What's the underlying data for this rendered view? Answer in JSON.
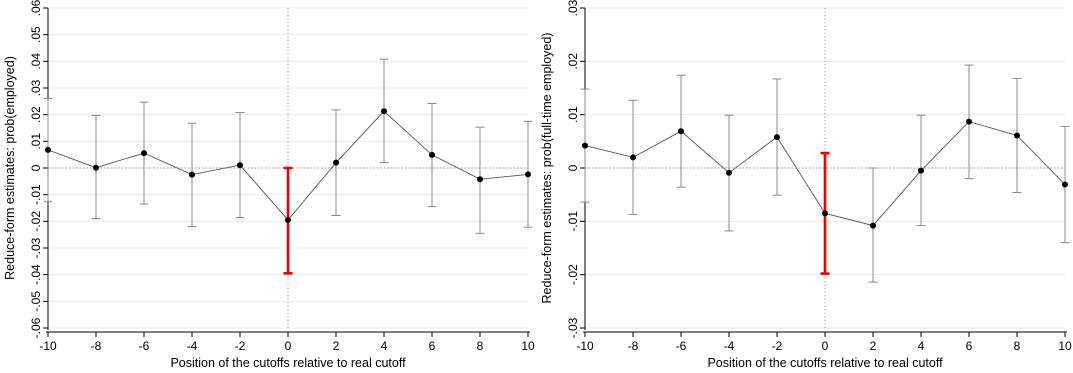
{
  "chart_data": [
    {
      "type": "scatter",
      "xlabel": "Position of the cutoffs relative to real cutoff",
      "ylabel": "Reduce-form estimates: prob(employed)",
      "xlim": [
        -10,
        10
      ],
      "ylim": [
        -0.06,
        0.06
      ],
      "xticks": [
        "-10",
        "-8",
        "-6",
        "-4",
        "-2",
        "0",
        "2",
        "4",
        "6",
        "8",
        "10"
      ],
      "yticks": [
        "-.06",
        "-.05",
        "-.04",
        "-.03",
        "-.02",
        "-.01",
        "0",
        ".01",
        ".02",
        ".03",
        ".04",
        ".05",
        ".06"
      ],
      "ytick_values": [
        -0.06,
        -0.05,
        -0.04,
        -0.03,
        -0.02,
        -0.01,
        0,
        0.01,
        0.02,
        0.03,
        0.04,
        0.05,
        0.06
      ],
      "xtick_values": [
        -10,
        -8,
        -6,
        -4,
        -2,
        0,
        2,
        4,
        6,
        8,
        10
      ],
      "grid": true,
      "reference_lines": {
        "x": 0,
        "y": 0
      },
      "highlight_x": 0,
      "highlight_color": "#e8000b",
      "point_color": "#000000",
      "line_color": "#555555",
      "ci_color": "#888888",
      "points": [
        {
          "x": -10,
          "y": 0.0068,
          "lo": -0.0125,
          "hi": 0.0261
        },
        {
          "x": -8,
          "y": 0.0001,
          "lo": -0.019,
          "hi": 0.0197
        },
        {
          "x": -6,
          "y": 0.0056,
          "lo": -0.0135,
          "hi": 0.0247
        },
        {
          "x": -4,
          "y": -0.0025,
          "lo": -0.022,
          "hi": 0.0168
        },
        {
          "x": -2,
          "y": 0.0011,
          "lo": -0.0186,
          "hi": 0.0208
        },
        {
          "x": 0,
          "y": -0.0195,
          "lo": -0.0395,
          "hi": 0.0
        },
        {
          "x": 2,
          "y": 0.002,
          "lo": -0.0178,
          "hi": 0.0218
        },
        {
          "x": 4,
          "y": 0.0213,
          "lo": 0.002,
          "hi": 0.0408
        },
        {
          "x": 6,
          "y": 0.0049,
          "lo": -0.0145,
          "hi": 0.0242
        },
        {
          "x": 8,
          "y": -0.0042,
          "lo": -0.0245,
          "hi": 0.0153
        },
        {
          "x": 10,
          "y": -0.0024,
          "lo": -0.0222,
          "hi": 0.0175
        }
      ]
    },
    {
      "type": "scatter",
      "xlabel": "Position of the cutoffs relative to real cutoff",
      "ylabel": "Reduce-form estimates: prob(full-time employed)",
      "xlim": [
        -10,
        10
      ],
      "ylim": [
        -0.03,
        0.03
      ],
      "xticks": [
        "-10",
        "-8",
        "-6",
        "-4",
        "-2",
        "0",
        "2",
        "4",
        "6",
        "8",
        "10"
      ],
      "yticks": [
        "-.03",
        "-.02",
        "-.01",
        "0",
        ".01",
        ".02",
        ".03"
      ],
      "ytick_values": [
        -0.03,
        -0.02,
        -0.01,
        0,
        0.01,
        0.02,
        0.03
      ],
      "xtick_values": [
        -10,
        -8,
        -6,
        -4,
        -2,
        0,
        2,
        4,
        6,
        8,
        10
      ],
      "grid": true,
      "reference_lines": {
        "x": 0,
        "y": 0
      },
      "highlight_x": 0,
      "highlight_color": "#e8000b",
      "point_color": "#000000",
      "line_color": "#555555",
      "ci_color": "#888888",
      "points": [
        {
          "x": -10,
          "y": 0.0042,
          "lo": -0.0064,
          "hi": 0.0148
        },
        {
          "x": -8,
          "y": 0.002,
          "lo": -0.0087,
          "hi": 0.0127
        },
        {
          "x": -6,
          "y": 0.0069,
          "lo": -0.0036,
          "hi": 0.0174
        },
        {
          "x": -4,
          "y": -0.0009,
          "lo": -0.0118,
          "hi": 0.0099
        },
        {
          "x": -2,
          "y": 0.0058,
          "lo": -0.0051,
          "hi": 0.0167
        },
        {
          "x": 0,
          "y": -0.0085,
          "lo": -0.0198,
          "hi": 0.0028
        },
        {
          "x": 2,
          "y": -0.0108,
          "lo": -0.0214,
          "hi": 0.0
        },
        {
          "x": 4,
          "y": -0.0005,
          "lo": -0.0108,
          "hi": 0.0099
        },
        {
          "x": 6,
          "y": 0.0087,
          "lo": -0.002,
          "hi": 0.0193
        },
        {
          "x": 8,
          "y": 0.0061,
          "lo": -0.0046,
          "hi": 0.0168
        },
        {
          "x": 10,
          "y": -0.0031,
          "lo": -0.014,
          "hi": 0.0078
        }
      ]
    }
  ]
}
